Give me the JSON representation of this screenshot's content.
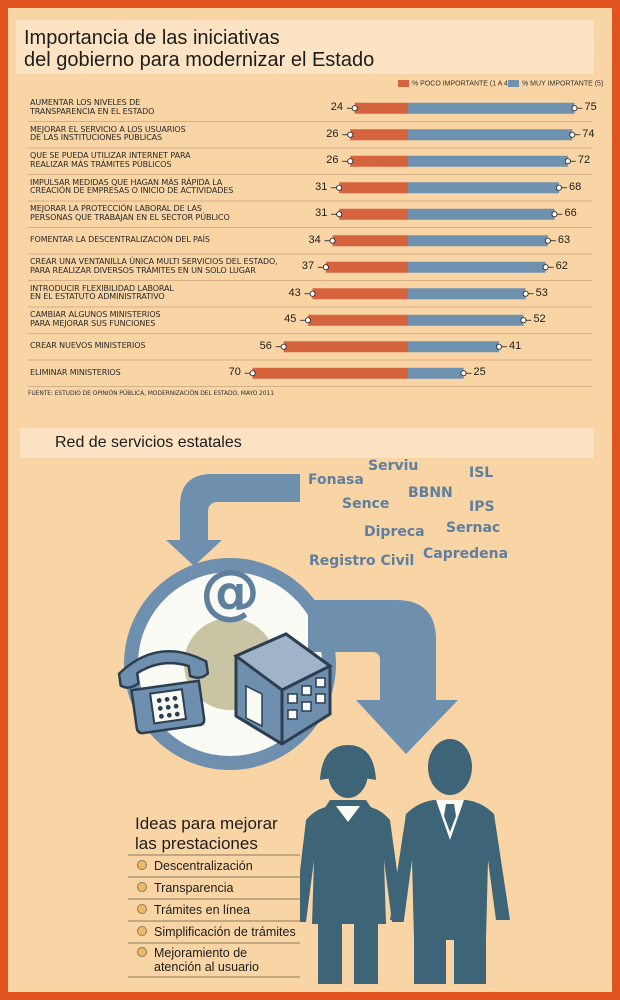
{
  "title_lines": [
    "Importancia de las iniciativas",
    "del gobierno para modernizar el Estado"
  ],
  "legend": {
    "low_label": "% POCO IMPORTANTE (1 A 4)",
    "high_label": "% MUY IMPORTANTE (5)"
  },
  "colors": {
    "low": "#d5633e",
    "high": "#6f91b0",
    "border": "#e2541f",
    "panel": "#f9d5a6",
    "figure": "#3e6477"
  },
  "chart_data": {
    "type": "bar",
    "orientation": "horizontal-diverging",
    "categories": [
      [
        "AUMENTAR LOS NIVELES DE",
        "TRANSPARENCIA EN EL ESTADO"
      ],
      [
        "MEJORAR EL SERVICIO A LOS USUARIOS",
        "DE LAS INSTITUCIONES PÚBLICAS"
      ],
      [
        "QUE SE PUEDA UTILIZAR INTERNET PARA",
        "REALIZAR MÁS TRÁMITES PÚBLICOS"
      ],
      [
        "IMPULSAR MEDIDAS QUE HAGAN MÁS RÁPIDA LA",
        "CREACIÓN DE EMPRESAS O INICIO DE ACTIVIDADES"
      ],
      [
        "MEJORAR LA PROTECCIÓN LABORAL DE LAS",
        "PERSONAS QUE TRABAJAN EN EL SECTOR PÚBLICO"
      ],
      [
        "FOMENTAR LA DESCENTRALIZACIÓN DEL PAÍS"
      ],
      [
        "CREAR UNA VENTANILLA ÚNICA MULTI SERVICIOS DEL ESTADO,",
        "PARA REALIZAR DIVERSOS TRÁMITES EN UN SOLO LUGAR"
      ],
      [
        "INTRODUCIR FLEXIBILIDAD LABORAL",
        "EN EL ESTATUTO ADMINISTRATIVO"
      ],
      [
        "CAMBIAR ALGUNOS MINISTERIOS",
        "PARA MEJORAR SUS FUNCIONES"
      ],
      [
        "CREAR NUEVOS MINISTERIOS"
      ],
      [
        "ELIMINAR MINISTERIOS"
      ]
    ],
    "series": [
      {
        "name": "% POCO IMPORTANTE (1 A 4)",
        "values": [
          24,
          26,
          26,
          31,
          31,
          34,
          37,
          43,
          45,
          56,
          70
        ]
      },
      {
        "name": "% MUY IMPORTANTE (5)",
        "values": [
          75,
          74,
          72,
          68,
          66,
          63,
          62,
          53,
          52,
          41,
          25
        ]
      }
    ]
  },
  "source": "FUENTE: ESTUDIO DE OPINIÓN PÚBLICA, MODERNIZACIÓN DEL ESTADO, MAYO 2011",
  "network": {
    "title": "Red de servicios estatales",
    "services": [
      "Fonasa",
      "Serviu",
      "ISL",
      "BBNN",
      "Sence",
      "IPS",
      "Dipreca",
      "Sernac",
      "Registro Civil",
      "Capredena"
    ],
    "icons": [
      "at-sign-icon",
      "telephone-icon",
      "building-icon",
      "woman-figure-icon",
      "man-figure-icon"
    ]
  },
  "ideas": {
    "title_lines": [
      "Ideas para mejorar",
      "las prestaciones"
    ],
    "items": [
      [
        "Descentralización"
      ],
      [
        "Transparencia"
      ],
      [
        "Trámites en línea"
      ],
      [
        "Simplificación de trámites"
      ],
      [
        "Mejoramiento de",
        "atención al usuario"
      ]
    ]
  }
}
